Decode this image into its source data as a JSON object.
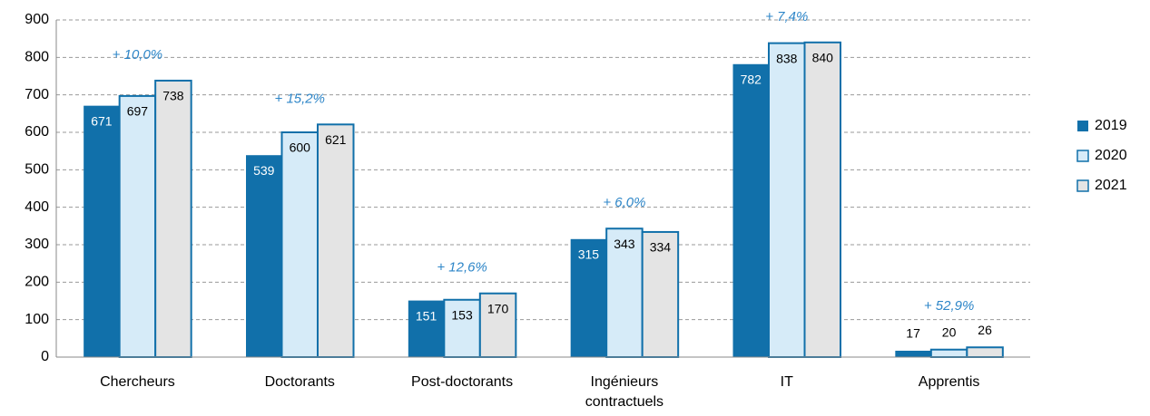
{
  "chart_data": {
    "type": "bar",
    "categories": [
      "Chercheurs",
      "Doctorants",
      "Post-doctorants",
      "Ingénieurs\ncontractuels",
      "IT",
      "Apprentis"
    ],
    "series": [
      {
        "name": "2019",
        "color": "#1170aa",
        "values": [
          671,
          539,
          151,
          315,
          782,
          17
        ]
      },
      {
        "name": "2020",
        "color": "#d6ebf8",
        "values": [
          697,
          600,
          153,
          343,
          838,
          20
        ]
      },
      {
        "name": "2021",
        "color": "#e4e4e4",
        "values": [
          738,
          621,
          170,
          334,
          840,
          26
        ]
      }
    ],
    "annotations": [
      "+ 10,0%",
      "+ 15,2%",
      "+ 12,6%",
      "+ 6,0%",
      "+ 7,4%",
      "+ 52,9%"
    ],
    "ylim": [
      0,
      900
    ],
    "yticks": [
      0,
      100,
      200,
      300,
      400,
      500,
      600,
      700,
      800,
      900
    ],
    "grid": true,
    "legend": "right"
  }
}
